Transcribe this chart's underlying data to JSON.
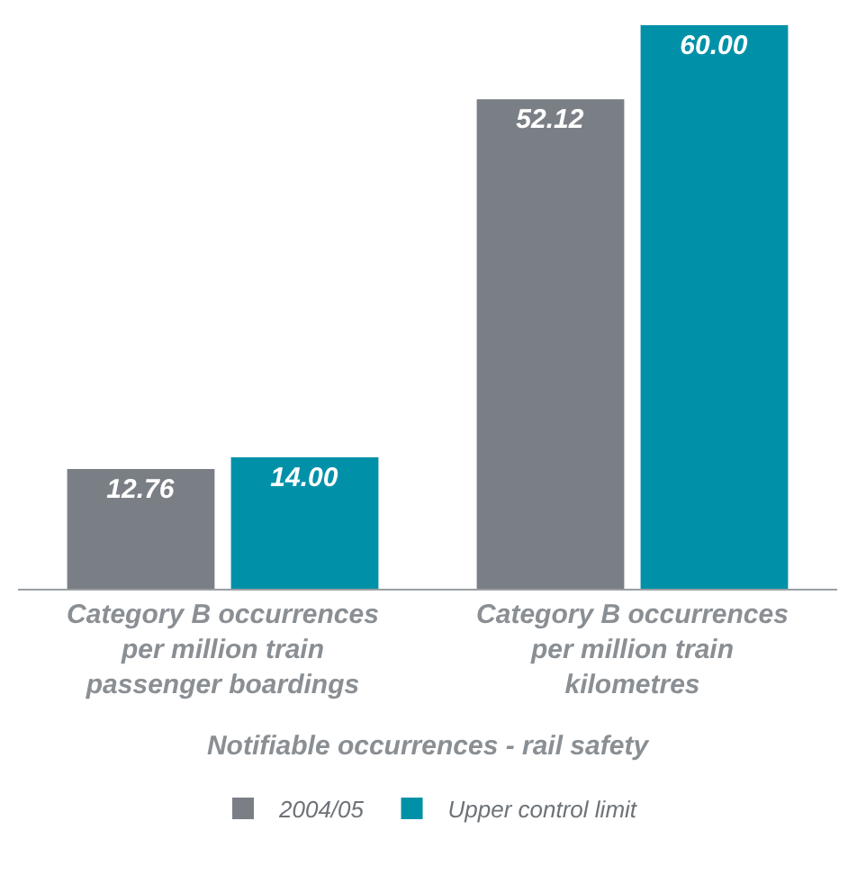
{
  "chart_data": {
    "type": "bar",
    "xlabel": "Notifiable occurrences - rail safety",
    "categories": [
      "Category B occurrences per million train passenger boardings",
      "Category B occurrences per million train kilometres"
    ],
    "series": [
      {
        "name": "2004/05",
        "color": "#7a7f86",
        "values": [
          12.76,
          52.12
        ],
        "value_labels": [
          "12.76",
          "52.12"
        ]
      },
      {
        "name": "Upper control limit",
        "color": "#0091a8",
        "values": [
          14.0,
          60.0
        ],
        "value_labels": [
          "14.00",
          "60.00"
        ]
      }
    ],
    "legend": "bottom"
  }
}
